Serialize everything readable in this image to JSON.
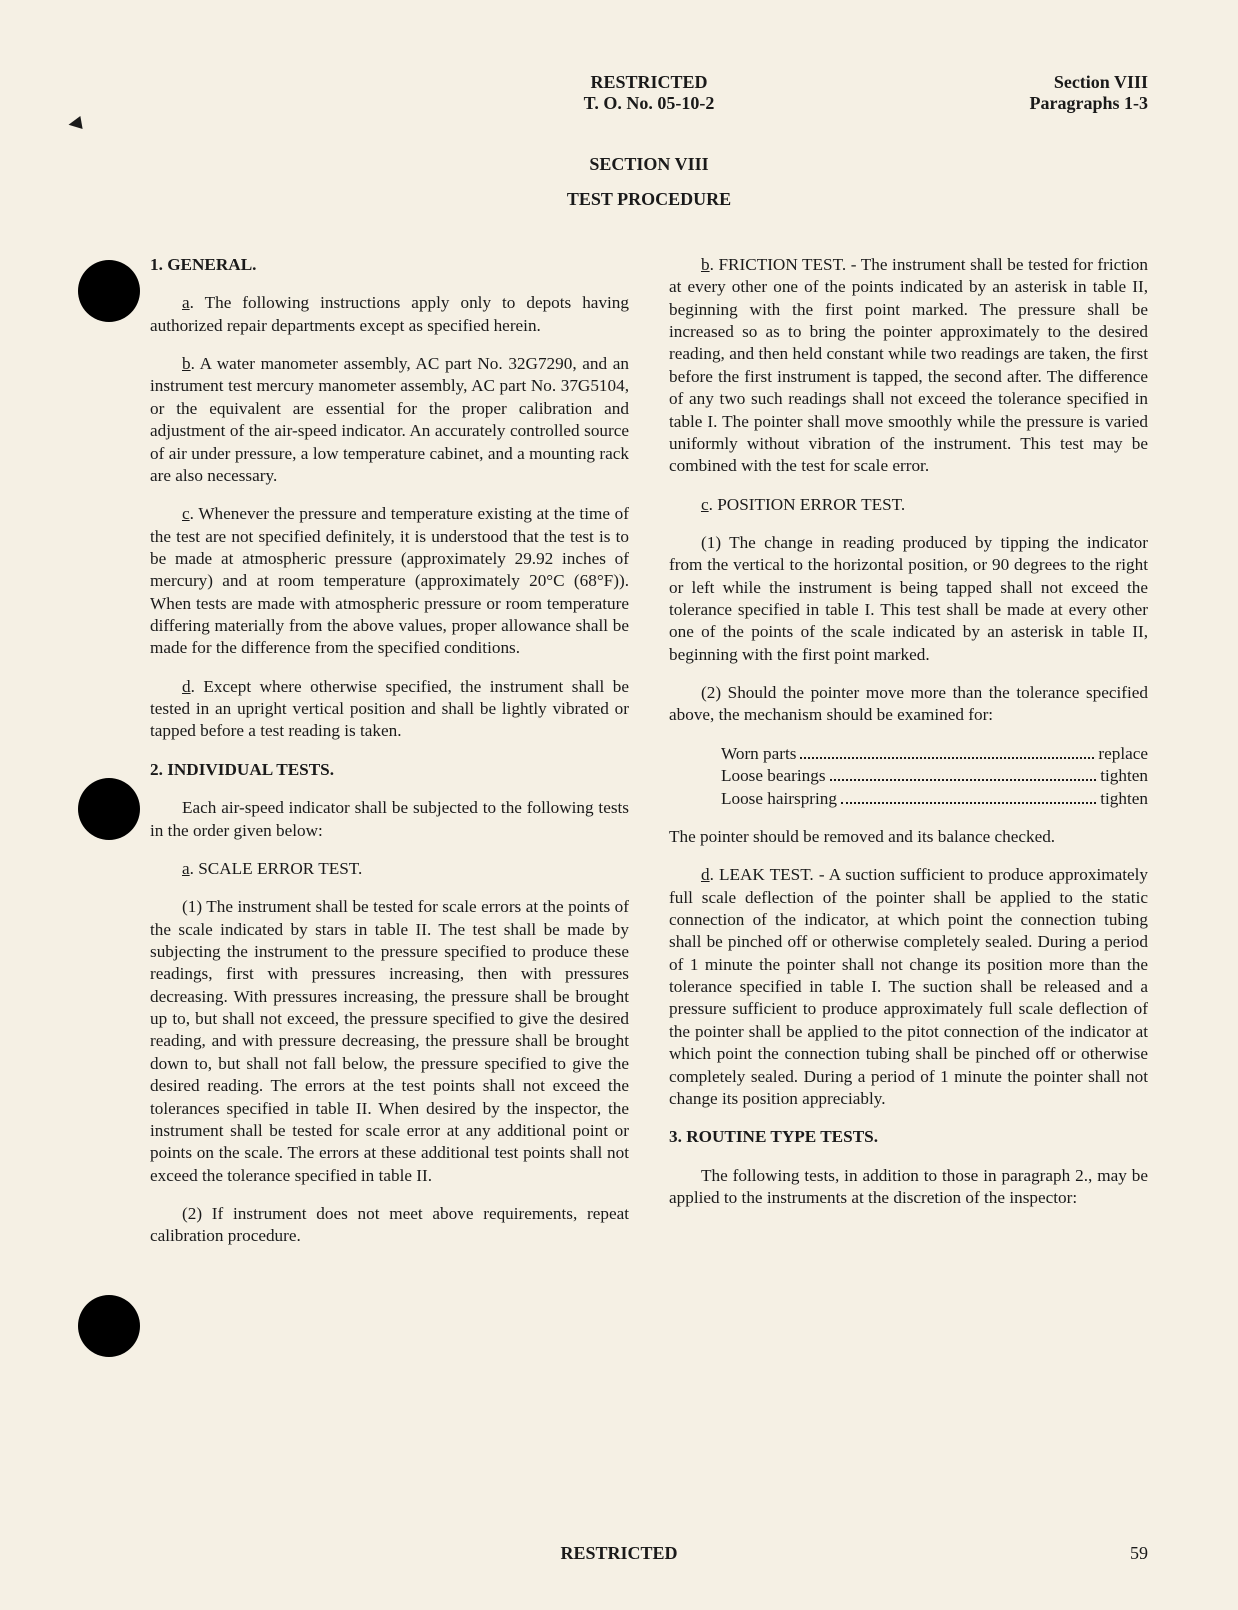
{
  "header": {
    "classification": "RESTRICTED",
    "doc_number": "T. O. No. 05-10-2",
    "section": "Section VIII",
    "paragraphs": "Paragraphs 1-3"
  },
  "section_heading": "SECTION VIII",
  "section_subheading": "TEST PROCEDURE",
  "h1": "1. GENERAL.",
  "p1a": ". The following instructions apply only to depots having authorized repair departments except as specified herein.",
  "p1b": ". A water manometer assembly, AC part No. 32G7290, and an instrument test mercury manometer assembly, AC part No. 37G5104, or the equivalent are essential for the proper calibration and adjustment of the air-speed indicator. An accurately controlled source of air under pressure, a low temperature cabinet, and a mounting rack are also necessary.",
  "p1c": ". Whenever the pressure and temperature existing at the time of the test are not specified definitely, it is understood that the test is to be made at atmospheric pressure (approximately 29.92 inches of mercury) and at room temperature (approximately 20°C (68°F)). When tests are made with atmospheric pressure or room temperature differing materially from the above values, proper allowance shall be made for the difference from the specified conditions.",
  "p1d": ". Except where otherwise specified, the instrument shall be tested in an upright vertical position and shall be lightly vibrated or tapped before a test reading is taken.",
  "h2": "2. INDIVIDUAL TESTS.",
  "p2intro": "Each air-speed indicator shall be subjected to the following tests in the order given below:",
  "h2a": ". SCALE ERROR TEST.",
  "p2a1": "(1) The instrument shall be tested for scale errors at the points of the scale indicated by stars in table II. The test shall be made by subjecting the instrument to the pressure  specified to produce these readings, first with pressures increasing, then with pressures decreasing. With pressures increasing, the pressure shall be brought up to, but shall not exceed, the pressure specified to give the desired reading, and with pressure  decreasing, the pressure shall be brought down to, but shall not fall below, the pressure specified to give the desired reading. The errors at the test points shall not exceed the tolerances specified in table II. When desired by the inspector, the instrument shall be tested for scale error at any additional point or points on the scale. The errors at these additional test points shall not exceed the tolerance  specified in table II.",
  "p2a2": "(2) If instrument does not meet above requirements, repeat calibration procedure.",
  "p2b": ". FRICTION TEST. - The instrument shall be tested for friction at every other one of the points indicated by an asterisk in table II, beginning with the first point marked. The pressure shall be increased so as to bring the pointer approximately to the desired reading, and then held constant while two readings are taken, the first before the first instrument is tapped, the second after. The difference of any two such readings shall not exceed the tolerance specified in table I. The pointer shall move smoothly while the pressure is varied uniformly without vibration of the instrument. This test may be combined with the test for scale error.",
  "h2c": ". POSITION ERROR TEST.",
  "p2c1": "(1) The change in reading produced by tipping the indicator from the vertical to the horizontal position, or 90 degrees to the right or left while the instrument is being tapped shall not exceed the tolerance specified in table I. This test shall be made at every other one of the points of the scale indicated by an asterisk in table II, beginning with the first point marked.",
  "p2c2": "(2) Should the pointer move more than the tolerance specified above, the mechanism should be examined for:",
  "defects": [
    {
      "label": "Worn parts",
      "action": "replace"
    },
    {
      "label": "Loose bearings",
      "action": "tighten"
    },
    {
      "label": "Loose hairspring",
      "action": "tighten"
    }
  ],
  "p2c_after": "The pointer should be removed and its balance checked.",
  "p2d": ". LEAK TEST. - A suction sufficient to produce approximately full scale deflection of the pointer shall be applied to the static connection of the indicator, at which point the connection tubing shall be pinched off or otherwise completely sealed. During a period of 1 minute the pointer shall not change its position more than the tolerance specified in table I. The suction shall be released and a pressure sufficient to produce approximately full scale deflection of the pointer shall be applied to the pitot connection of the indicator at which point the connection tubing shall be pinched off or otherwise completely sealed. During a period of 1 minute the pointer shall not change its position appreciably.",
  "h3": "3. ROUTINE TYPE TESTS.",
  "p3intro": "The following tests, in addition to those in paragraph 2., may be applied to the instruments at the discretion of the inspector:",
  "footer_classification": "RESTRICTED",
  "page_number": "59",
  "letters": {
    "a": "a",
    "b": "b",
    "c": "c",
    "d": "d"
  }
}
